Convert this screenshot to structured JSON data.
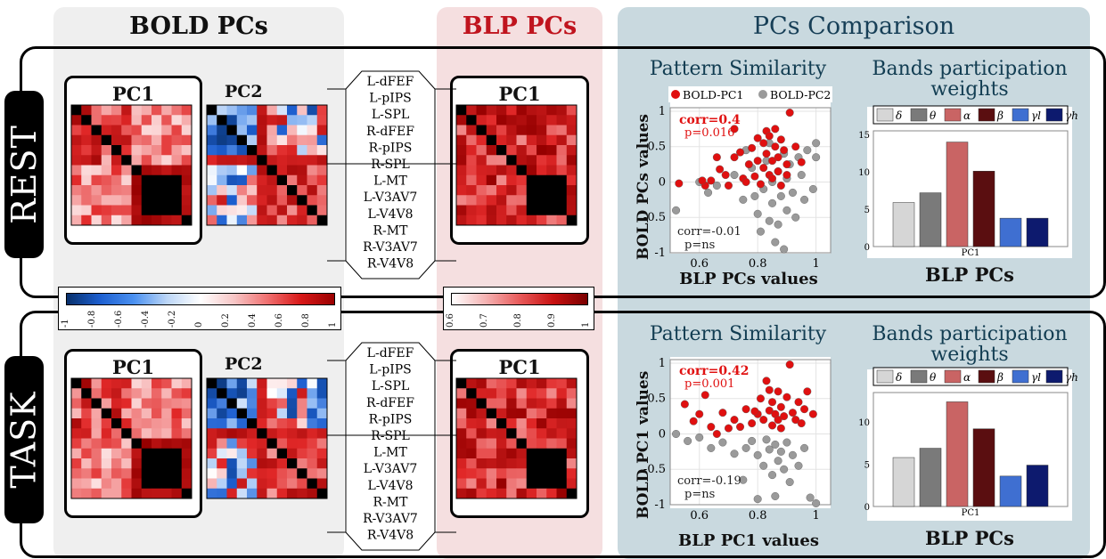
{
  "headers": {
    "bold": "BOLD PCs",
    "blp": "BLP PCs",
    "comparison": "PCs Comparison"
  },
  "rows": [
    {
      "tag": "REST",
      "bold_pc1_title": "PC1",
      "bold_pc2_title": "PC2",
      "blp_pc1_title": "PC1",
      "regions": [
        "L-dFEF",
        "L-pIPS",
        "L-SPL",
        "R-dFEF",
        "R-pIPS",
        "R-SPL",
        "L-MT",
        "L-V3AV7",
        "L-V4V8",
        "R-MT",
        "R-V3AV7",
        "R-V4V8"
      ],
      "scatter_title": "Pattern Similarity",
      "scatter_ylabel": "BOLD PCs values",
      "scatter_xlabel": "BLP PCs values",
      "corr1": "corr=0.4",
      "p1": "p=0.016",
      "corr2": "corr=-0.01",
      "p2": "p=ns",
      "bands_title": "Bands participation weights",
      "bands_xlabel": "BLP PCs",
      "bands_tick": "PC1"
    },
    {
      "tag": "TASK",
      "bold_pc1_title": "PC1",
      "bold_pc2_title": "PC2",
      "blp_pc1_title": "PC1",
      "regions": [
        "L-dFEF",
        "L-pIPS",
        "L-SPL",
        "R-dFEF",
        "R-pIPS",
        "R-SPL",
        "L-MT",
        "L-V3AV7",
        "L-V4V8",
        "R-MT",
        "R-V3AV7",
        "R-V4V8"
      ],
      "scatter_title": "Pattern Similarity",
      "scatter_ylabel": "BOLD PC1 values",
      "scatter_xlabel": "BLP PC1 values",
      "corr1": "corr=0.42",
      "p1": "p=0.001",
      "corr2": "corr=-0.19",
      "p2": "p=ns",
      "bands_title": "Bands participation weights",
      "bands_xlabel": "BLP PCs",
      "bands_tick": "PC1"
    }
  ],
  "colorbars": {
    "diverging_ticks": [
      "-1",
      "-0.8",
      "-0.6",
      "-0.4",
      "-0.2",
      "0",
      "0.2",
      "0.4",
      "0.6",
      "0.8",
      "1"
    ],
    "red_ticks": [
      "0.6",
      "0.7",
      "0.8",
      "0.9",
      "1"
    ]
  },
  "colors": {
    "bold_panel": "#efefef",
    "blp_panel": "#f5dfe0",
    "comp_panel": "#c9d9df",
    "blp_header": "#c0141e",
    "comp_header": "#173f57",
    "bold_pc1_dot": "#e01010",
    "bold_pc2_dot": "#9a9a9a"
  },
  "chart_data": [
    {
      "type": "scatter",
      "title": "Pattern Similarity",
      "xlabel": "BLP PCs values",
      "ylabel": "BOLD PCs values",
      "xlim": [
        0.5,
        1.05
      ],
      "ylim": [
        -1,
        1.05
      ],
      "xticks": [
        "0.6",
        "0.8",
        "1"
      ],
      "yticks": [
        "-1",
        "-0.5",
        "0",
        "0.5",
        "1"
      ],
      "grid": true,
      "legend_position": "top",
      "series": [
        {
          "name": "BOLD-PC1",
          "color": "#e01010",
          "points": [
            [
              0.53,
              -0.02
            ],
            [
              0.62,
              -0.05
            ],
            [
              0.64,
              0.02
            ],
            [
              0.67,
              0.18
            ],
            [
              0.69,
              0.1
            ],
            [
              0.7,
              -0.05
            ],
            [
              0.72,
              0.35
            ],
            [
              0.74,
              0.42
            ],
            [
              0.75,
              0.05
            ],
            [
              0.77,
              0.25
            ],
            [
              0.78,
              0.48
            ],
            [
              0.79,
              0.08
            ],
            [
              0.8,
              0.62
            ],
            [
              0.8,
              0.3
            ],
            [
              0.81,
              -0.03
            ],
            [
              0.82,
              0.55
            ],
            [
              0.82,
              0.2
            ],
            [
              0.83,
              0.72
            ],
            [
              0.83,
              0.4
            ],
            [
              0.84,
              0.1
            ],
            [
              0.84,
              0.65
            ],
            [
              0.85,
              0.3
            ],
            [
              0.85,
              0.05
            ],
            [
              0.86,
              0.5
            ],
            [
              0.86,
              0.75
            ],
            [
              0.87,
              0.15
            ],
            [
              0.87,
              0.35
            ],
            [
              0.88,
              0.6
            ],
            [
              0.88,
              -0.05
            ],
            [
              0.89,
              0.45
            ],
            [
              0.9,
              0.25
            ],
            [
              0.9,
              0.1
            ],
            [
              0.91,
              0.98
            ],
            [
              0.72,
              0.75
            ],
            [
              0.66,
              0.35
            ],
            [
              0.93,
              0.5
            ],
            [
              0.76,
              0.0
            ],
            [
              0.61,
              0.02
            ],
            [
              0.95,
              0.28
            ]
          ]
        },
        {
          "name": "BOLD-PC2",
          "color": "#9a9a9a",
          "points": [
            [
              0.52,
              -0.4
            ],
            [
              0.6,
              0.0
            ],
            [
              0.63,
              -0.15
            ],
            [
              0.66,
              -0.05
            ],
            [
              0.72,
              0.1
            ],
            [
              0.75,
              -0.25
            ],
            [
              0.78,
              0.2
            ],
            [
              0.8,
              -0.45
            ],
            [
              0.81,
              -0.7
            ],
            [
              0.82,
              -0.1
            ],
            [
              0.83,
              0.3
            ],
            [
              0.84,
              -0.55
            ],
            [
              0.85,
              -0.3
            ],
            [
              0.85,
              0.0
            ],
            [
              0.86,
              -0.85
            ],
            [
              0.87,
              0.15
            ],
            [
              0.87,
              -0.6
            ],
            [
              0.88,
              -0.2
            ],
            [
              0.89,
              0.4
            ],
            [
              0.89,
              -0.95
            ],
            [
              0.9,
              0.05
            ],
            [
              0.9,
              -0.4
            ],
            [
              0.91,
              0.25
            ],
            [
              0.92,
              -0.15
            ],
            [
              0.93,
              -0.5
            ],
            [
              0.95,
              0.1
            ],
            [
              0.96,
              -0.25
            ],
            [
              0.97,
              0.45
            ],
            [
              0.99,
              -0.1
            ],
            [
              1.0,
              0.55
            ],
            [
              1.0,
              0.35
            ],
            [
              0.76,
              0.45
            ],
            [
              0.79,
              -0.2
            ],
            [
              0.84,
              0.55
            ],
            [
              0.94,
              0.35
            ]
          ]
        }
      ]
    },
    {
      "type": "bar",
      "title": "Bands participation weights",
      "xlabel": "BLP PCs",
      "categories": [
        "δ",
        "θ",
        "α",
        "β",
        "γl",
        "γh"
      ],
      "values": [
        5.9,
        7.2,
        14.0,
        10.1,
        3.8,
        3.8
      ],
      "colors": [
        "#d6d6d6",
        "#7a7a7a",
        "#c96464",
        "#5a0e10",
        "#3f6fd1",
        "#0d1a6e"
      ],
      "ylim": [
        0,
        15.5
      ],
      "yticks": [
        "0",
        "5",
        "10",
        "15"
      ],
      "xtick": "PC1"
    },
    {
      "type": "scatter",
      "title": "Pattern Similarity",
      "xlabel": "BLP PC1 values",
      "ylabel": "BOLD PC1 values",
      "xlim": [
        0.5,
        1.05
      ],
      "ylim": [
        -1,
        1.05
      ],
      "xticks": [
        "0.6",
        "0.8",
        "1"
      ],
      "yticks": [
        "-1",
        "-0.5",
        "0",
        "0.5",
        "1"
      ],
      "grid": true,
      "series": [
        {
          "name": "BOLD-PC1",
          "color": "#e01010",
          "points": [
            [
              0.55,
              0.42
            ],
            [
              0.58,
              0.18
            ],
            [
              0.6,
              0.28
            ],
            [
              0.62,
              0.55
            ],
            [
              0.64,
              0.1
            ],
            [
              0.66,
              0.0
            ],
            [
              0.68,
              0.3
            ],
            [
              0.7,
              0.08
            ],
            [
              0.72,
              0.2
            ],
            [
              0.74,
              0.1
            ],
            [
              0.76,
              0.35
            ],
            [
              0.78,
              0.15
            ],
            [
              0.8,
              0.28
            ],
            [
              0.81,
              0.5
            ],
            [
              0.82,
              0.2
            ],
            [
              0.83,
              0.75
            ],
            [
              0.84,
              0.33
            ],
            [
              0.85,
              0.45
            ],
            [
              0.85,
              0.12
            ],
            [
              0.86,
              0.28
            ],
            [
              0.87,
              0.6
            ],
            [
              0.87,
              0.2
            ],
            [
              0.88,
              0.38
            ],
            [
              0.89,
              0.25
            ],
            [
              0.9,
              0.52
            ],
            [
              0.91,
              0.98
            ],
            [
              0.92,
              0.3
            ],
            [
              0.93,
              0.2
            ],
            [
              0.94,
              0.45
            ],
            [
              0.95,
              0.15
            ],
            [
              0.96,
              0.35
            ],
            [
              0.97,
              0.6
            ],
            [
              0.99,
              0.28
            ],
            [
              0.88,
              0.08
            ],
            [
              0.84,
              0.62
            ],
            [
              0.79,
              0.32
            ]
          ]
        },
        {
          "name": "BOLD-PC2",
          "color": "#9a9a9a",
          "points": [
            [
              0.52,
              0.0
            ],
            [
              0.56,
              -0.1
            ],
            [
              0.6,
              -0.05
            ],
            [
              0.64,
              -0.2
            ],
            [
              0.68,
              -0.12
            ],
            [
              0.72,
              -0.28
            ],
            [
              0.76,
              -0.2
            ],
            [
              0.78,
              -0.1
            ],
            [
              0.8,
              -0.3
            ],
            [
              0.82,
              -0.45
            ],
            [
              0.83,
              -0.08
            ],
            [
              0.84,
              -0.22
            ],
            [
              0.85,
              -0.58
            ],
            [
              0.86,
              -0.15
            ],
            [
              0.87,
              -0.38
            ],
            [
              0.88,
              -0.25
            ],
            [
              0.89,
              -0.5
            ],
            [
              0.9,
              -0.12
            ],
            [
              0.91,
              -0.68
            ],
            [
              0.92,
              -0.3
            ],
            [
              0.94,
              -0.45
            ],
            [
              0.96,
              -0.2
            ],
            [
              0.98,
              -0.9
            ],
            [
              1.0,
              -0.98
            ],
            [
              0.86,
              -0.88
            ],
            [
              0.8,
              -0.92
            ],
            [
              0.75,
              -0.65
            ]
          ]
        }
      ]
    },
    {
      "type": "bar",
      "title": "Bands participation weights",
      "xlabel": "BLP PCs",
      "categories": [
        "δ",
        "θ",
        "α",
        "β",
        "γl",
        "γh"
      ],
      "values": [
        5.8,
        6.9,
        12.4,
        9.2,
        3.6,
        4.9
      ],
      "colors": [
        "#d6d6d6",
        "#7a7a7a",
        "#c96464",
        "#5a0e10",
        "#3f6fd1",
        "#0d1a6e"
      ],
      "ylim": [
        0,
        13.5
      ],
      "yticks": [
        "0",
        "5",
        "10"
      ],
      "xtick": "PC1"
    }
  ]
}
